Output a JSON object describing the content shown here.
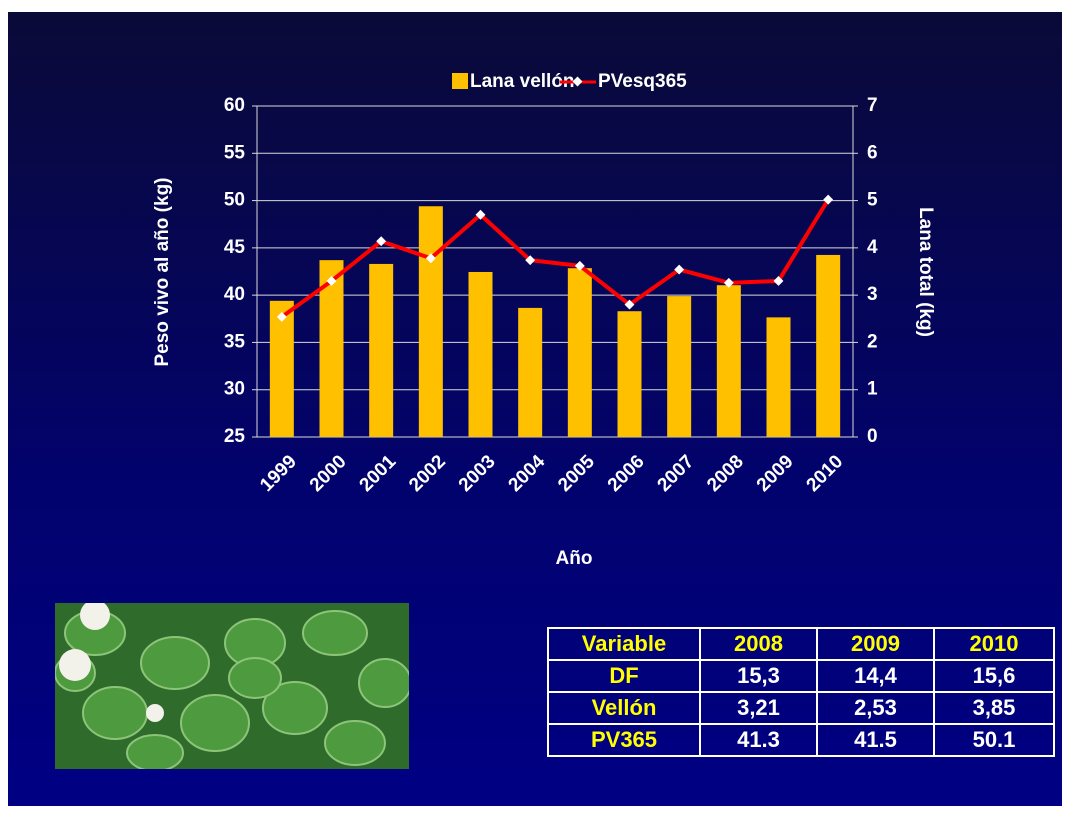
{
  "chart_data": {
    "type": "bar-line",
    "categories": [
      "1999",
      "2000",
      "2001",
      "2002",
      "2003",
      "2004",
      "2005",
      "2006",
      "2007",
      "2008",
      "2009",
      "2010"
    ],
    "series": [
      {
        "name": "Lana vellón",
        "type": "bar",
        "axis": "y2",
        "color": "#ffc000",
        "values": [
          2.88,
          3.74,
          3.66,
          4.88,
          3.49,
          2.73,
          3.57,
          2.66,
          2.98,
          3.21,
          2.53,
          3.85
        ]
      },
      {
        "name": "PVesq365",
        "type": "line",
        "axis": "y",
        "color": "#ff0000",
        "values": [
          37.7,
          41.5,
          45.7,
          43.9,
          48.5,
          43.7,
          43.1,
          39.0,
          42.7,
          41.3,
          41.5,
          50.1
        ]
      }
    ],
    "ylabel": "Peso vivo al año (kg)",
    "y2label": "Lana total (kg)",
    "xlabel": "Año",
    "ylim": [
      25,
      60
    ],
    "yticks": [
      25,
      30,
      35,
      40,
      45,
      50,
      55,
      60
    ],
    "y2lim": [
      0,
      7
    ],
    "y2ticks": [
      0,
      1,
      2,
      3,
      4,
      5,
      6,
      7
    ],
    "grid": true,
    "legend": "top"
  },
  "table": {
    "header": [
      "Variable",
      "2008",
      "2009",
      "2010"
    ],
    "rows": [
      [
        "DF",
        "15,3",
        "14,4",
        "15,6"
      ],
      [
        "Vellón",
        "3,21",
        "2,53",
        "3,85"
      ],
      [
        "PV365",
        "41.3",
        "41.5",
        "50.1"
      ]
    ]
  }
}
